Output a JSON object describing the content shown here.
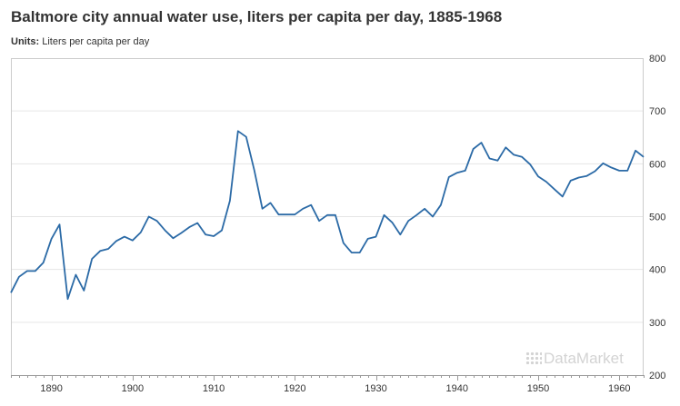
{
  "title": "Baltmore city annual water use, liters per capita per day, 1885-1968",
  "units_label": "Units:",
  "units_value": "Liters per capita per day",
  "watermark": "DataMarket",
  "colors": {
    "line": "#2b6aa6",
    "grid": "#e6e6e6",
    "axis": "#cccccc",
    "text": "#333333"
  },
  "chart_data": {
    "type": "line",
    "title": "Baltmore city annual water use, liters per capita per day, 1885-1968",
    "xlabel": "",
    "ylabel": "",
    "xlim": [
      1885,
      1963
    ],
    "ylim": [
      200,
      800
    ],
    "x_ticks": [
      1890,
      1900,
      1910,
      1920,
      1930,
      1940,
      1950,
      1960
    ],
    "y_ticks": [
      200,
      300,
      400,
      500,
      600,
      700,
      800
    ],
    "grid": true,
    "y_axis_position": "right",
    "x": [
      1885,
      1886,
      1887,
      1888,
      1889,
      1890,
      1891,
      1892,
      1893,
      1894,
      1895,
      1896,
      1897,
      1898,
      1899,
      1900,
      1901,
      1902,
      1903,
      1904,
      1905,
      1906,
      1907,
      1908,
      1909,
      1910,
      1911,
      1912,
      1913,
      1914,
      1915,
      1916,
      1917,
      1918,
      1919,
      1920,
      1921,
      1922,
      1923,
      1924,
      1925,
      1926,
      1927,
      1928,
      1929,
      1930,
      1931,
      1932,
      1933,
      1934,
      1935,
      1936,
      1937,
      1938,
      1939,
      1940,
      1941,
      1942,
      1943,
      1944,
      1945,
      1946,
      1947,
      1948,
      1949,
      1950,
      1951,
      1952,
      1953,
      1954,
      1955,
      1956,
      1957,
      1958,
      1959,
      1960,
      1961,
      1962,
      1963
    ],
    "values": [
      356,
      386,
      397,
      397,
      413,
      458,
      485,
      344,
      390,
      360,
      420,
      435,
      439,
      454,
      462,
      455,
      470,
      500,
      492,
      474,
      459,
      469,
      480,
      488,
      466,
      463,
      474,
      530,
      662,
      651,
      588,
      515,
      526,
      504,
      504,
      504,
      515,
      522,
      492,
      503,
      503,
      450,
      432,
      432,
      458,
      462,
      503,
      489,
      466,
      492,
      503,
      515,
      500,
      522,
      575,
      583,
      587,
      628,
      640,
      610,
      606,
      631,
      617,
      613,
      599,
      576,
      566,
      552,
      538,
      568,
      574,
      577,
      586,
      601,
      593,
      587,
      587,
      625,
      613
    ]
  }
}
